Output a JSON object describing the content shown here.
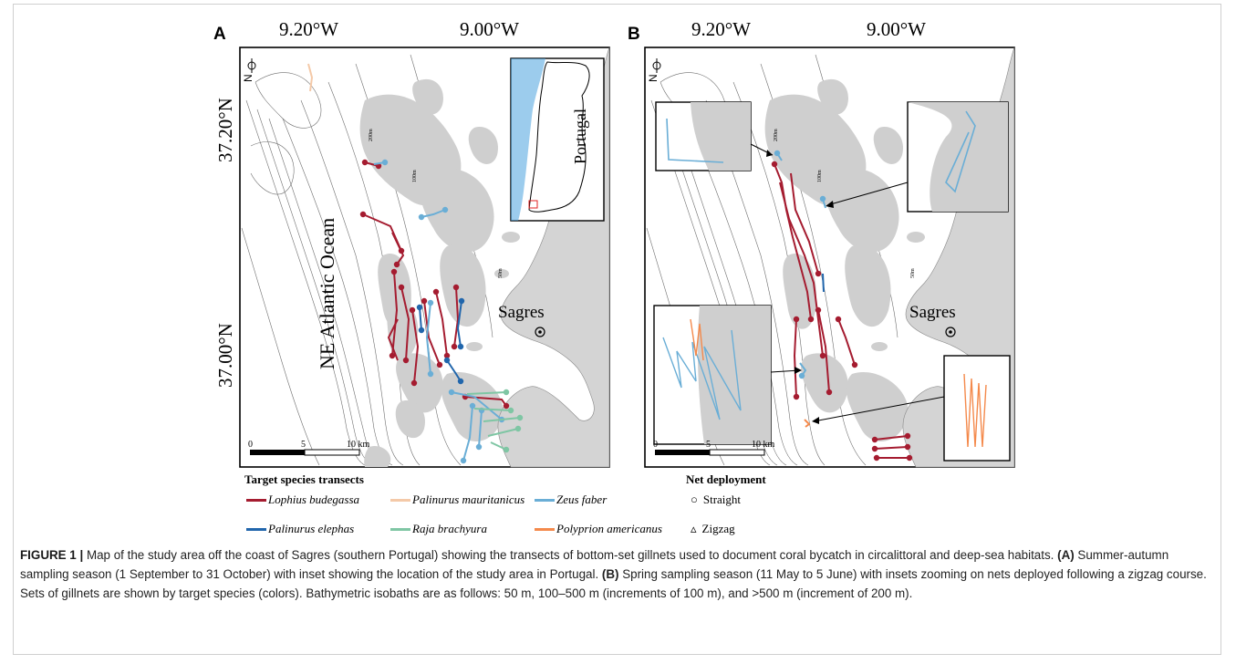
{
  "panels": [
    {
      "letter": "A",
      "lon_labels": [
        "9.20°W",
        "9.00°W"
      ],
      "lat_labels": [
        "37.20°N",
        "37.00°N"
      ],
      "ocean_label": "NE Atlantic Ocean",
      "town_label": "Sagres",
      "inset_label": "Portugal",
      "north_label": "N",
      "isobath_labels": [
        "200m",
        "100m",
        "50m"
      ],
      "scale": {
        "ticks": [
          "0",
          "5",
          "10 km"
        ]
      }
    },
    {
      "letter": "B",
      "lon_labels": [
        "9.20°W",
        "9.00°W"
      ],
      "town_label": "Sagres",
      "north_label": "N",
      "isobath_labels": [
        "200m",
        "100m",
        "50m"
      ],
      "scale": {
        "ticks": [
          "0",
          "5",
          "10 km"
        ]
      }
    }
  ],
  "legend": {
    "species_title": "Target species transects",
    "species": [
      {
        "name": "Lophius budegassa",
        "color": "#a51c30"
      },
      {
        "name": "Palinurus mauritanicus",
        "color": "#f4c9a8"
      },
      {
        "name": "Zeus faber",
        "color": "#6aaed6"
      },
      {
        "name": "Palinurus elephas",
        "color": "#2166ac"
      },
      {
        "name": "Raja brachyura",
        "color": "#7fc6a4"
      },
      {
        "name": "Polyprion americanus",
        "color": "#f4894b"
      }
    ],
    "deployment_title": "Net deployment",
    "deployments": [
      {
        "symbol": "○",
        "label": "Straight"
      },
      {
        "symbol": "▵",
        "label": "Zigzag"
      }
    ]
  },
  "caption": {
    "figure_label": "FIGURE 1 |",
    "intro": " Map of the study area off the coast of Sagres (southern Portugal) showing the transects of bottom-set gillnets used to document coral bycatch in circalittoral and deep-sea habitats. ",
    "a_tag": "(A)",
    "a_text": " Summer-autumn sampling season (1 September to 31 October) with inset showing the location of the study area in Portugal. ",
    "b_tag": "(B)",
    "b_text": " Spring sampling season (11 May to 5 June) with insets zooming on nets deployed following a zigzag course. Sets of gillnets are shown by target species (colors). Bathymetric isobaths are as follows: 50 m, 100–500 m (increments of 100 m), and >500 m (increment of 200 m)."
  },
  "colors": {
    "land": "#d4d4d4",
    "reef": "#c8c8c8",
    "isobath": "#6e6e6e",
    "inset_sea": "#4aa3df"
  }
}
